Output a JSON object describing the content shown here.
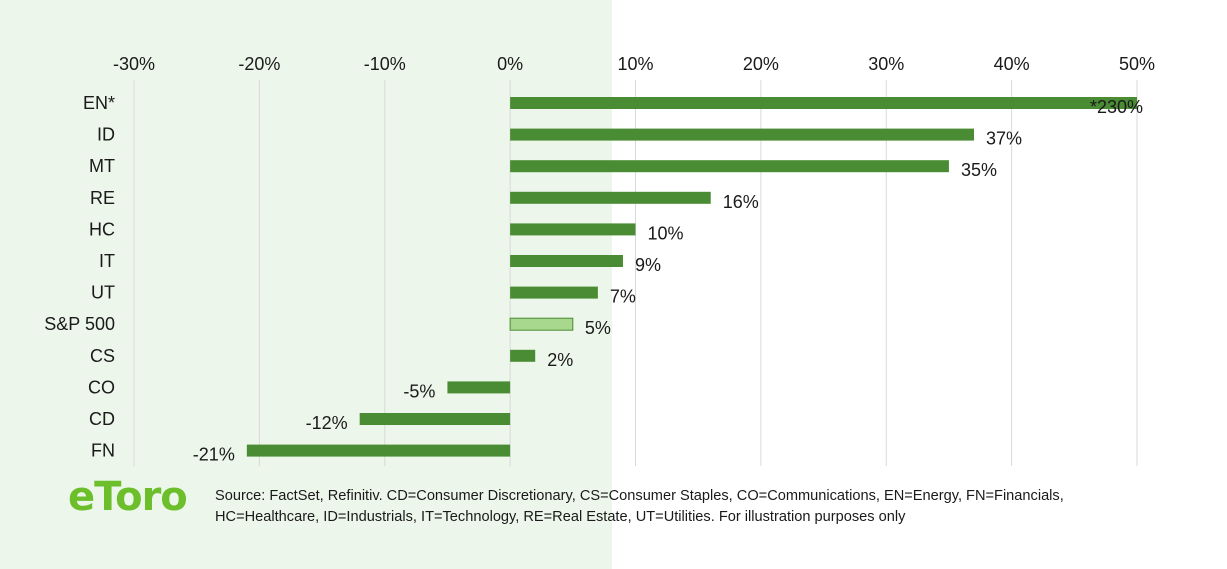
{
  "chart_data": {
    "type": "bar",
    "orientation": "horizontal",
    "categories": [
      "EN*",
      "ID",
      "MT",
      "RE",
      "HC",
      "IT",
      "UT",
      "S&P 500",
      "CS",
      "CO",
      "CD",
      "FN"
    ],
    "values": [
      230,
      37,
      35,
      16,
      10,
      9,
      7,
      5,
      2,
      -5,
      -12,
      -21
    ],
    "data_labels": [
      "*230%",
      "37%",
      "35%",
      "16%",
      "10%",
      "9%",
      "7%",
      "5%",
      "2%",
      "-5%",
      "-12%",
      "-21%"
    ],
    "highlight_category": "S&P 500",
    "xlim": [
      -30,
      50
    ],
    "xticks": [
      -30,
      -20,
      -10,
      0,
      10,
      20,
      30,
      40,
      50
    ],
    "xtick_labels": [
      "-30%",
      "-20%",
      "-10%",
      "0%",
      "10%",
      "20%",
      "30%",
      "40%",
      "50%"
    ],
    "x_axis_position": "top",
    "grid": true,
    "colors": {
      "bar": "#4a8c34",
      "highlight_bar": "#a8d88e",
      "highlight_border": "#4a8c34",
      "grid": "#d9d9d9"
    }
  },
  "footer": {
    "logo_text": "eToro",
    "source_line1": "Source: FactSet, Refinitiv. CD=Consumer Discretionary, CS=Consumer Staples, CO=Communications, EN=Energy, FN=Financials,",
    "source_line2": "HC=Healthcare, ID=Industrials, IT=Technology, RE=Real Estate,  UT=Utilities.  For illustration purposes only"
  }
}
